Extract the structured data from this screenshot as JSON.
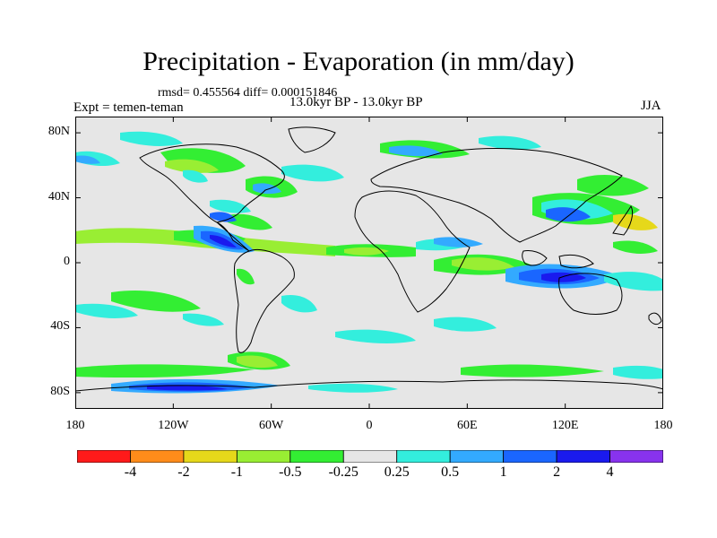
{
  "figure": {
    "title": "Precipitation - Evaporation (in mm/day)",
    "stats": "rmsd= 0.455564 diff= 0.000151846",
    "experiment": "Expt = temen-teman",
    "period": "13.0kyr BP - 13.0kyr BP",
    "season": "JJA"
  },
  "axes": {
    "lat_labels": [
      "80N",
      "40N",
      "0",
      "40S",
      "80S"
    ],
    "lat_values": [
      80,
      40,
      0,
      -40,
      -80
    ],
    "lon_labels": [
      "180",
      "120W",
      "60W",
      "0",
      "60E",
      "120E",
      "180"
    ],
    "lon_values": [
      -180,
      -120,
      -60,
      0,
      60,
      120,
      180
    ],
    "lat_range": [
      -90,
      90
    ],
    "lon_range": [
      -180,
      180
    ]
  },
  "colorbar": {
    "labels": [
      "-4",
      "-2",
      "-1",
      "-0.5",
      "-0.25",
      "0.25",
      "0.5",
      "1",
      "2",
      "4"
    ],
    "colors": [
      "#ff1a1a",
      "#ff8c1a",
      "#e6d81a",
      "#99ee33",
      "#33ee33",
      "#e6e6e6",
      "#33eedd",
      "#33aaff",
      "#1a66ff",
      "#1a1aee",
      "#8833ee"
    ]
  },
  "colors": {
    "ocean_background": "#e6e6e6",
    "coastline": "#000000"
  }
}
